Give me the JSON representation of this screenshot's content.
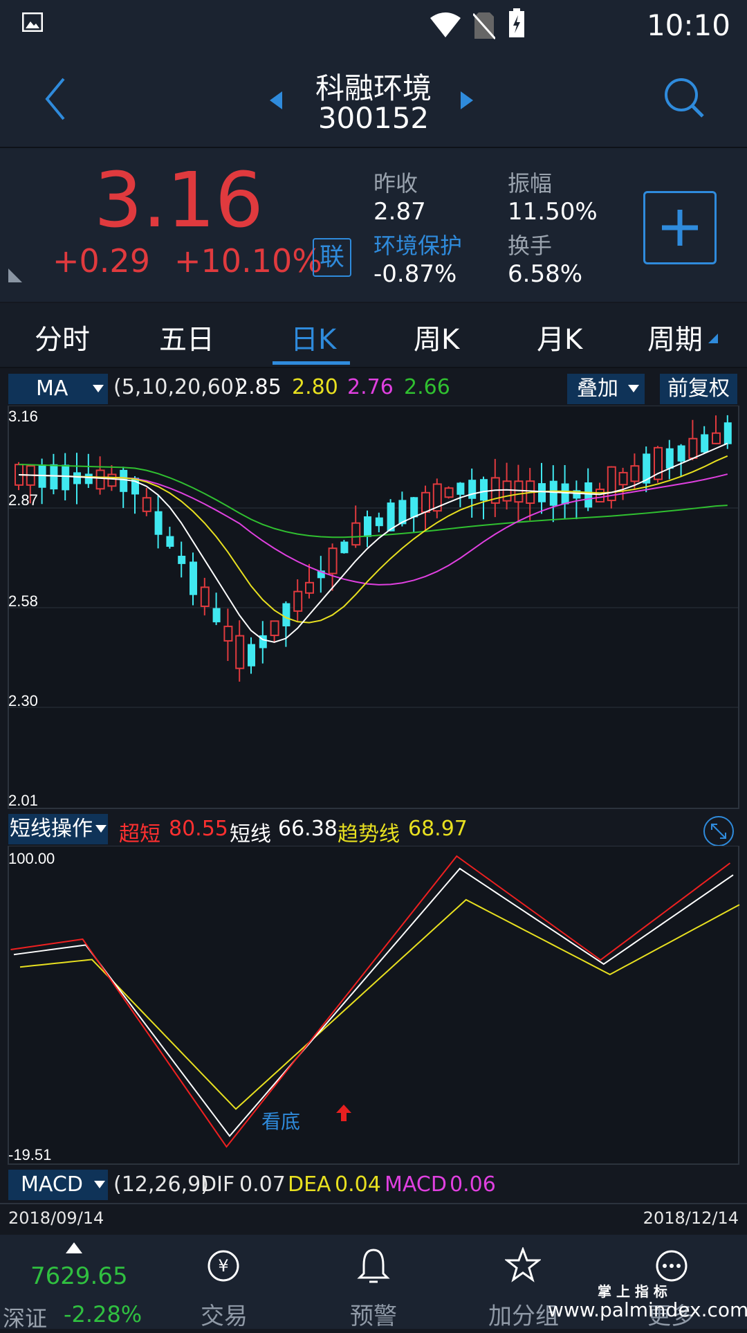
{
  "status": {
    "time": "10:10"
  },
  "header": {
    "stock_name": "科融环境",
    "stock_code": "300152"
  },
  "quote": {
    "price": "3.16",
    "change": "+0.29",
    "change_pct": "+10.10%",
    "link_badge": "联",
    "prev_close_label": "昨收",
    "prev_close": "2.87",
    "amplitude_label": "振幅",
    "amplitude": "11.50%",
    "sector_label": "环境保护",
    "sector_change": "-0.87%",
    "turnover_label": "换手",
    "turnover": "6.58%"
  },
  "tabs": [
    "分时",
    "五日",
    "日K",
    "周K",
    "月K",
    "周期"
  ],
  "active_tab": 2,
  "ma_bar": {
    "selector": "MA",
    "params": "(5,10,20,60)",
    "v1": "2.85",
    "v2": "2.80",
    "v3": "2.76",
    "v4": "2.66",
    "overlay": "叠加",
    "adjust": "前复权"
  },
  "price_axis": {
    "top": "3.16",
    "mid1": "2.58",
    "mid2": "2.30",
    "bottom": "2.01",
    "last_marker": "2.87"
  },
  "indicator_bar": {
    "selector": "短线操作",
    "s1_label": "超短",
    "s1_val": "80.55",
    "s2_label": "短线",
    "s2_val": "66.38",
    "s3_label": "趋势线",
    "s3_val": "68.97"
  },
  "indicator_axis": {
    "top": "100.00",
    "bottom": "-19.51"
  },
  "signal_label": "看底",
  "macd_bar": {
    "selector": "MACD",
    "params": "(12,26,9)",
    "dif_label": "DIF",
    "dif": "0.07",
    "dea_label": "DEA",
    "dea": "0.04",
    "macd_label": "MACD",
    "macd": "0.06"
  },
  "dates": {
    "start": "2018/09/14",
    "end": "2018/12/14"
  },
  "bottom_nav": {
    "index_value": "7629.65",
    "index_name": "深证",
    "index_change": "-2.28%",
    "items": [
      "交易",
      "预警",
      "加分组",
      "更多"
    ]
  },
  "watermark": {
    "cn": "掌 上 指 标",
    "url": "www.palmindex.com"
  },
  "colors": {
    "up": "#e03a3e",
    "down": "#40e8f0",
    "ma5": "#ffffff",
    "ma10": "#e8e020",
    "ma20": "#e040e0",
    "ma60": "#30c030"
  }
}
